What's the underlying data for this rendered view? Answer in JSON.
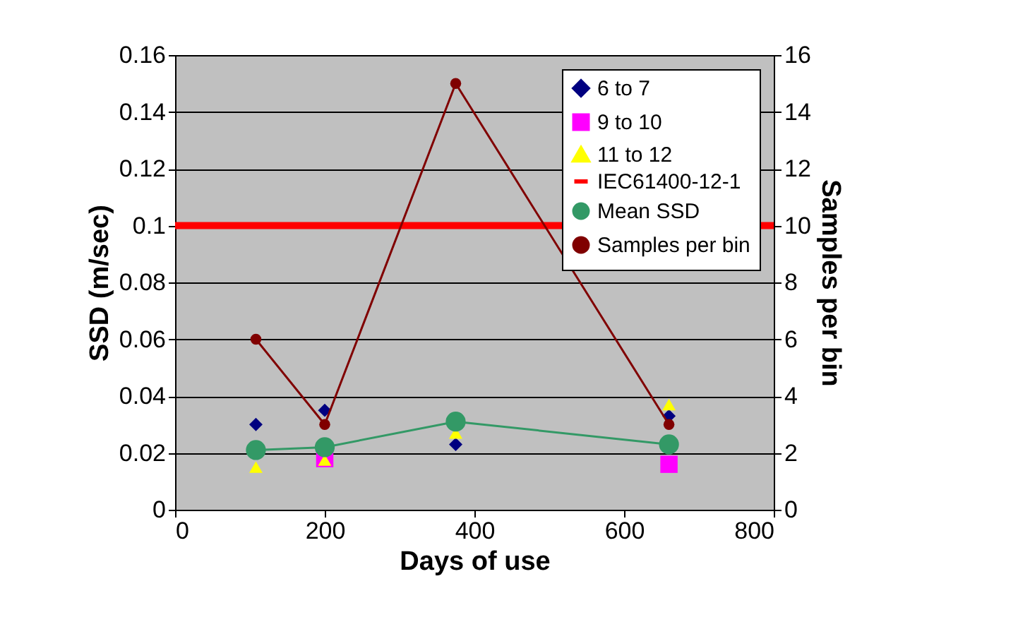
{
  "chart_data": {
    "type": "scatter",
    "xlabel": "Days of use",
    "ylabel": "SSD (m/sec)",
    "y2label": "Samples per bin",
    "x": [
      108,
      200,
      375,
      660
    ],
    "series": [
      {
        "name": "6 to 7",
        "color": "#000080",
        "marker": "diamond",
        "values": [
          0.03,
          0.035,
          0.023,
          0.033
        ]
      },
      {
        "name": "9 to 10",
        "color": "#ff00ff",
        "marker": "square",
        "values": [
          null,
          0.018,
          null,
          0.016
        ]
      },
      {
        "name": "11 to 12",
        "color": "#ffff00",
        "marker": "triangle",
        "values": [
          0.015,
          0.0175,
          0.027,
          0.037
        ]
      },
      {
        "name": "IEC61400-12-1",
        "type": "line",
        "color": "#ff0000",
        "marker": "none",
        "x": [
          0,
          800
        ],
        "values": [
          0.1,
          0.1
        ]
      },
      {
        "name": "Mean SSD",
        "type": "line",
        "color": "#339966",
        "marker": "circle",
        "values": [
          0.021,
          0.022,
          0.031,
          0.023
        ]
      },
      {
        "name": "Samples per bin",
        "type": "line",
        "axis": "y2",
        "color": "#800000",
        "marker": "circle",
        "values": [
          6,
          3,
          15,
          3
        ]
      }
    ],
    "xlim": [
      0,
      800
    ],
    "xticks": [
      0,
      200,
      400,
      600,
      800
    ],
    "ylim": [
      0,
      0.16
    ],
    "yticks": [
      0,
      0.02,
      0.04,
      0.06,
      0.08,
      0.1,
      0.12,
      0.14,
      0.16
    ],
    "y2lim": [
      0,
      16
    ],
    "y2ticks": [
      0,
      2,
      4,
      6,
      8,
      10,
      12,
      14,
      16
    ],
    "grid": "y",
    "legend": "top right"
  }
}
